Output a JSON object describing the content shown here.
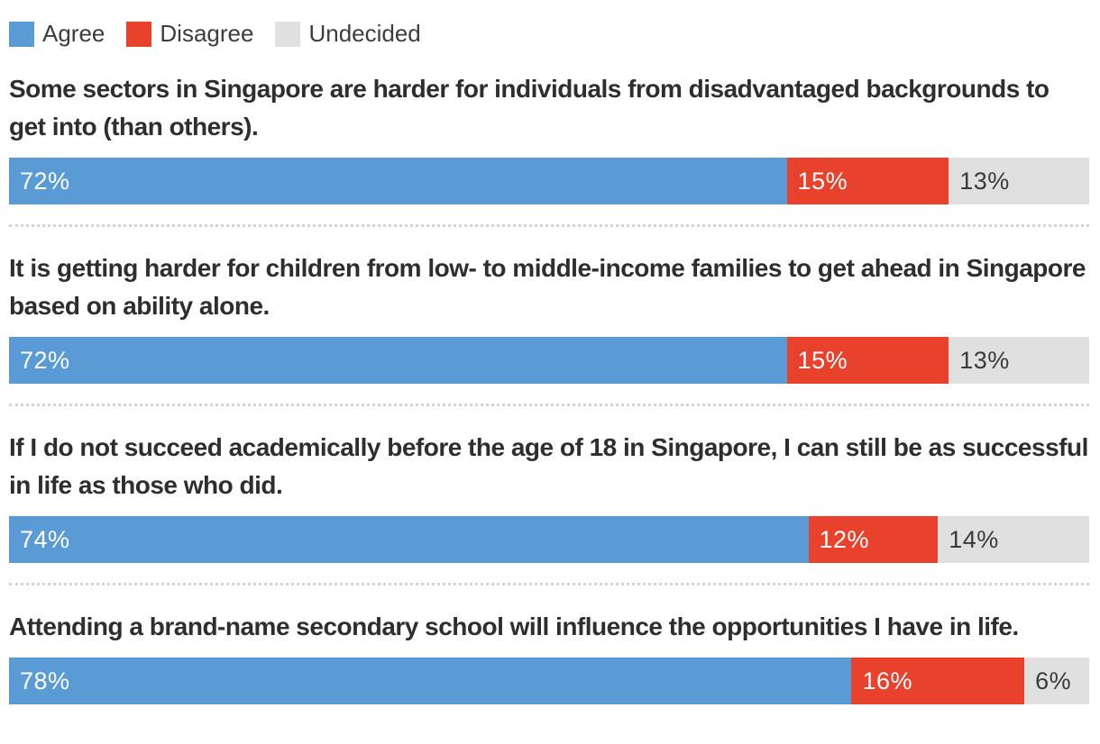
{
  "chart_data": {
    "type": "bar",
    "orientation": "horizontal",
    "stacked": true,
    "unit": "%",
    "xlim": [
      0,
      100
    ],
    "grid": false,
    "axes_shown": false,
    "legend_position": "top-left",
    "legend": [
      "Agree",
      "Disagree",
      "Undecided"
    ],
    "categories": [
      "Some sectors in Singapore are harder for individuals from disadvantaged backgrounds to get into (than others).",
      "It is getting harder for children from low- to middle-income families to get ahead in Singapore based on ability alone.",
      "If I do not succeed academically before the age of 18 in Singapore, I can still be as successful in life as those who did.",
      "Attending a brand-name secondary school will influence the opportunities I have in life."
    ],
    "series": [
      {
        "name": "Agree",
        "color": "#5a9bd5",
        "values": [
          72,
          72,
          74,
          78
        ]
      },
      {
        "name": "Disagree",
        "color": "#e8422c",
        "values": [
          15,
          15,
          12,
          16
        ]
      },
      {
        "name": "Undecided",
        "color": "#e0e0e0",
        "values": [
          13,
          13,
          14,
          6
        ]
      }
    ],
    "value_label_format": "{value}%"
  },
  "colors": {
    "agree": "#5a9bd5",
    "disagree": "#e8422c",
    "undecided": "#e0e0e0",
    "question_text": "#2e2e2e",
    "legend_text": "#3c3c3c",
    "value_label_on_color": "#ffffff",
    "value_label_on_gray": "#3a3a3a",
    "separator": "#d4d4d4",
    "background": "#ffffff"
  }
}
